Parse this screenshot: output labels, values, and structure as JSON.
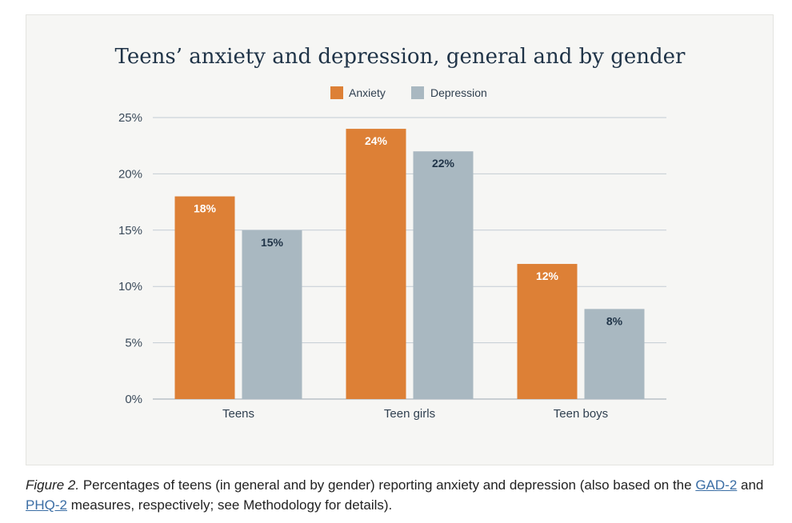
{
  "chart_data": {
    "type": "bar",
    "title": "Teens’ anxiety and depression, general and by gender",
    "categories": [
      "Teens",
      "Teen girls",
      "Teen boys"
    ],
    "series": [
      {
        "name": "Anxiety",
        "values": [
          18,
          24,
          12
        ],
        "color": "#dd8036",
        "label_color": "#ffffff"
      },
      {
        "name": "Depression",
        "values": [
          15,
          22,
          8
        ],
        "color": "#a9b8c1",
        "label_color": "#1f3347"
      }
    ],
    "data_labels": [
      [
        "18%",
        "24%",
        "12%"
      ],
      [
        "15%",
        "22%",
        "8%"
      ]
    ],
    "yticks": [
      0,
      5,
      10,
      15,
      20,
      25
    ],
    "ytick_labels": [
      "0%",
      "5%",
      "10%",
      "15%",
      "20%",
      "25%"
    ],
    "ylim": [
      0,
      25
    ],
    "xlabel": "",
    "ylabel": "",
    "grid": true,
    "legend_position": "top-center"
  },
  "caption": {
    "figure_label": "Figure 2.",
    "text_1": " Percentages of teens (in general and by gender) reporting anxiety and depression (also based on the ",
    "link_1": "GAD-2",
    "text_2": " and ",
    "link_2": "PHQ-2",
    "text_3": " measures, respectively; see Methodology for details)."
  }
}
